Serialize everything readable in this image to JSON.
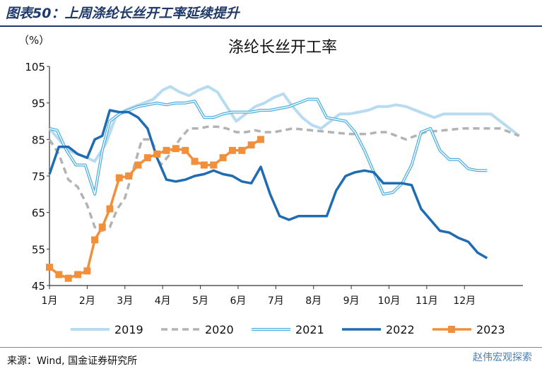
{
  "figure_title": "图表50：上周涤纶长丝开工率延续提升",
  "source": "来源：Wind, 国金证券研究所",
  "watermark": "赵伟宏观探索",
  "chart_data": {
    "type": "line",
    "title": "涤纶长丝开工率",
    "ylabel": "（%）",
    "xlabel": "",
    "ylim": [
      45,
      105
    ],
    "yticks": [
      45,
      55,
      65,
      75,
      85,
      95,
      105
    ],
    "xlim": [
      1,
      13.55
    ],
    "xticks": [
      1,
      2,
      3,
      4,
      5,
      6,
      7,
      8,
      9,
      10,
      11,
      12
    ],
    "xtick_labels": [
      "1月",
      "2月",
      "3月",
      "4月",
      "5月",
      "6月",
      "7月",
      "8月",
      "9月",
      "10月",
      "11月",
      "12月"
    ],
    "legend_position": "bottom",
    "grid": false,
    "series": [
      {
        "name": "2019",
        "color": "#b7dcf1",
        "style": "thick",
        "x": [
          1,
          1.25,
          1.5,
          1.75,
          2.0,
          2.2,
          2.5,
          2.75,
          3.0,
          3.25,
          3.5,
          3.75,
          4.0,
          4.2,
          4.45,
          4.7,
          4.95,
          5.2,
          5.45,
          5.7,
          5.95,
          6.2,
          6.45,
          6.7,
          6.95,
          7.2,
          7.45,
          7.7,
          7.95,
          8.2,
          8.45,
          8.7,
          8.95,
          9.2,
          9.45,
          9.7,
          9.95,
          10.2,
          10.45,
          10.7,
          10.95,
          11.2,
          11.45,
          11.7,
          11.95,
          12.2,
          12.45,
          12.7,
          12.95,
          13.2,
          13.45
        ],
        "values": [
          88,
          85,
          82,
          81,
          80,
          79,
          84,
          91,
          93,
          94,
          95,
          96,
          98.5,
          99.5,
          98,
          97,
          98.5,
          99.5,
          98,
          94,
          90,
          92,
          94,
          95,
          96.5,
          97.5,
          94,
          91,
          89,
          88,
          90,
          92,
          92,
          92.5,
          93,
          94,
          94,
          94.5,
          94,
          93,
          92,
          91,
          92,
          92,
          92,
          92,
          92,
          92,
          90,
          88,
          86
        ]
      },
      {
        "name": "2020",
        "color": "#b3b3b3",
        "style": "dashed",
        "x": [
          1,
          1.25,
          1.5,
          1.75,
          2.0,
          2.2,
          2.4,
          2.6,
          2.8,
          3.0,
          3.2,
          3.45,
          3.7,
          3.95,
          4.2,
          4.45,
          4.7,
          4.95,
          5.2,
          5.45,
          5.7,
          5.95,
          6.2,
          6.45,
          6.7,
          6.95,
          7.45,
          7.95,
          8.45,
          8.95,
          9.45,
          9.7,
          9.95,
          10.2,
          10.45,
          10.7,
          10.95,
          11.45,
          11.95,
          12.45,
          12.95,
          13.45
        ],
        "values": [
          85,
          81,
          74,
          72,
          67,
          61,
          60,
          61,
          66,
          69,
          76,
          85,
          85,
          78,
          81,
          85,
          88,
          88,
          88.5,
          88.5,
          88,
          87,
          87,
          87.5,
          87,
          87,
          88,
          87.5,
          87,
          86.5,
          86.5,
          87,
          87,
          86,
          85,
          86,
          87,
          87.5,
          88,
          88,
          88,
          86
        ]
      },
      {
        "name": "2021",
        "color": "#4aaee0",
        "style": "double",
        "x": [
          1,
          1.2,
          1.45,
          1.7,
          1.95,
          2.2,
          2.4,
          2.6,
          2.85,
          3.1,
          3.35,
          3.6,
          3.85,
          4.1,
          4.35,
          4.6,
          4.85,
          5.1,
          5.35,
          5.6,
          5.85,
          6.1,
          6.35,
          6.6,
          6.85,
          7.1,
          7.35,
          7.6,
          7.85,
          8.1,
          8.35,
          8.6,
          8.85,
          9.1,
          9.35,
          9.6,
          9.85,
          10.1,
          10.35,
          10.6,
          10.85,
          11.1,
          11.35,
          11.6,
          11.85,
          12.1,
          12.35,
          12.6
        ],
        "values": [
          88,
          87.5,
          82,
          78,
          78,
          70,
          82,
          90,
          92,
          93,
          94,
          94.5,
          95,
          94.5,
          95,
          95,
          95.5,
          91,
          91,
          92,
          92.5,
          92.5,
          92.5,
          93,
          93,
          93.5,
          94,
          95,
          96,
          96,
          91,
          90.5,
          90,
          87,
          82,
          76,
          70,
          70.5,
          73,
          78,
          87,
          88,
          82,
          79.5,
          79.5,
          77,
          76.5,
          76.5
        ]
      },
      {
        "name": "2022",
        "color": "#1f6cb3",
        "style": "solid",
        "x": [
          1,
          1.25,
          1.5,
          1.75,
          2.0,
          2.2,
          2.4,
          2.6,
          2.85,
          3.1,
          3.35,
          3.6,
          3.85,
          4.1,
          4.35,
          4.6,
          4.85,
          5.1,
          5.35,
          5.6,
          5.85,
          6.1,
          6.35,
          6.6,
          6.85,
          7.1,
          7.35,
          7.6,
          7.85,
          8.1,
          8.35,
          8.6,
          8.85,
          9.1,
          9.35,
          9.6,
          9.85,
          10.1,
          10.35,
          10.6,
          10.85,
          11.1,
          11.35,
          11.6,
          11.85,
          12.1,
          12.35,
          12.6
        ],
        "values": [
          75.5,
          83,
          83,
          81,
          80,
          85,
          86,
          93,
          92.5,
          92.5,
          91,
          88,
          80,
          74,
          73.5,
          74,
          75,
          75.5,
          76.5,
          75.5,
          75,
          73.5,
          73,
          77.5,
          70,
          64,
          63,
          64,
          64,
          64,
          64,
          71,
          75,
          76,
          76.5,
          76,
          73,
          73,
          73,
          72.5,
          66,
          63,
          60,
          59.5,
          58,
          57,
          54,
          52.5
        ]
      },
      {
        "name": "2023",
        "color": "#f28f3b",
        "style": "marker",
        "x": [
          1,
          1.25,
          1.5,
          1.75,
          2.0,
          2.2,
          2.4,
          2.6,
          2.85,
          3.1,
          3.35,
          3.6,
          3.85,
          4.1,
          4.35,
          4.6,
          4.85,
          5.1,
          5.35,
          5.6,
          5.85,
          6.1,
          6.35,
          6.6
        ],
        "values": [
          50,
          48,
          47,
          48,
          49,
          57.5,
          61,
          66,
          74.5,
          75,
          78,
          80,
          81,
          82,
          82.5,
          82,
          79,
          78,
          78,
          80,
          82,
          82,
          83.5,
          85
        ]
      }
    ]
  }
}
